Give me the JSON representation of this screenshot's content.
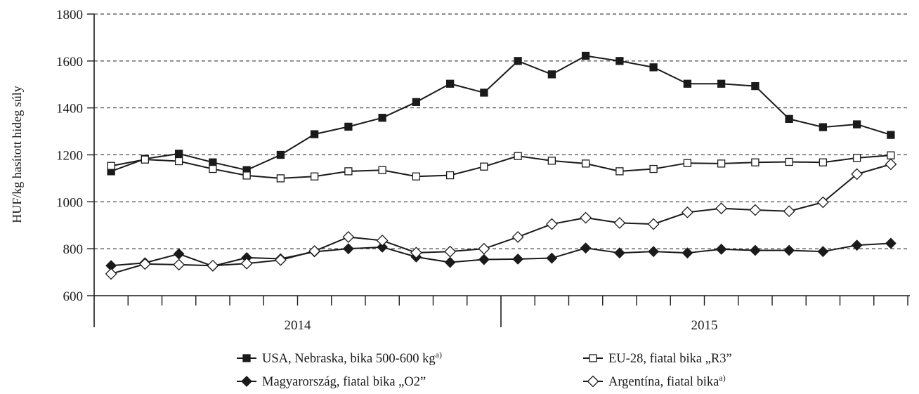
{
  "chart_data": {
    "type": "line",
    "ylabel": "HUF/kg hasított hideg súly",
    "ylim": [
      600,
      1800
    ],
    "yticks": [
      "600",
      "800",
      "1000",
      "1200",
      "1400",
      "1600",
      "1800"
    ],
    "x_groups": [
      "2014",
      "2015"
    ],
    "months_per_group": 12,
    "grid": "horizontal-dashed",
    "legend_position": "bottom",
    "colors": {
      "line": "#1a1a1a",
      "filled": "#1a1a1a",
      "open": "#ffffff"
    },
    "series": [
      {
        "name": "USA, Nebraska, bika 500-600 kg",
        "footnote": "a)",
        "marker": "filled-square",
        "x": [
          1,
          2,
          3,
          4,
          5,
          6,
          7,
          8,
          9,
          10,
          11,
          12,
          13,
          14,
          15,
          16,
          17,
          18,
          19,
          20,
          21,
          22,
          23,
          24
        ],
        "values": [
          1130,
          1183,
          1205,
          1168,
          1135,
          1200,
          1288,
          1320,
          1358,
          1425,
          1503,
          1465,
          1600,
          1543,
          1622,
          1600,
          1573,
          1503,
          1503,
          1493,
          1353,
          1318,
          1330,
          1285
        ]
      },
      {
        "name": "EU-28, fiatal bika „R3”",
        "footnote": "",
        "marker": "open-square",
        "x": [
          1,
          2,
          3,
          4,
          5,
          6,
          7,
          8,
          9,
          10,
          11,
          12,
          13,
          14,
          15,
          16,
          17,
          18,
          19,
          20,
          21,
          22,
          23,
          24
        ],
        "values": [
          1153,
          1180,
          1173,
          1140,
          1112,
          1100,
          1108,
          1130,
          1135,
          1108,
          1113,
          1150,
          1195,
          1175,
          1163,
          1130,
          1140,
          1165,
          1163,
          1168,
          1170,
          1168,
          1187,
          1198
        ]
      },
      {
        "name": "Magyarország, fiatal bika „O2”",
        "footnote": "",
        "marker": "filled-diamond",
        "x": [
          1,
          2,
          3,
          4,
          5,
          6,
          7,
          8,
          9,
          10,
          11,
          12,
          13,
          14,
          15,
          16,
          17,
          18,
          19,
          20,
          21,
          22,
          23,
          24
        ],
        "values": [
          728,
          740,
          778,
          726,
          762,
          757,
          787,
          800,
          807,
          765,
          742,
          754,
          756,
          760,
          803,
          782,
          788,
          782,
          798,
          793,
          793,
          788,
          815,
          823
        ]
      },
      {
        "name": "Argentína, fiatal bika",
        "footnote": "a)",
        "marker": "open-diamond",
        "x": [
          1,
          2,
          3,
          4,
          5,
          6,
          7,
          8,
          9,
          10,
          11,
          12,
          13,
          14,
          15,
          16,
          17,
          18,
          19,
          20,
          21,
          22,
          23,
          24
        ],
        "values": [
          693,
          735,
          732,
          728,
          737,
          752,
          790,
          850,
          835,
          783,
          788,
          800,
          850,
          905,
          932,
          910,
          905,
          955,
          972,
          965,
          960,
          998,
          1118,
          1160
        ]
      }
    ]
  }
}
